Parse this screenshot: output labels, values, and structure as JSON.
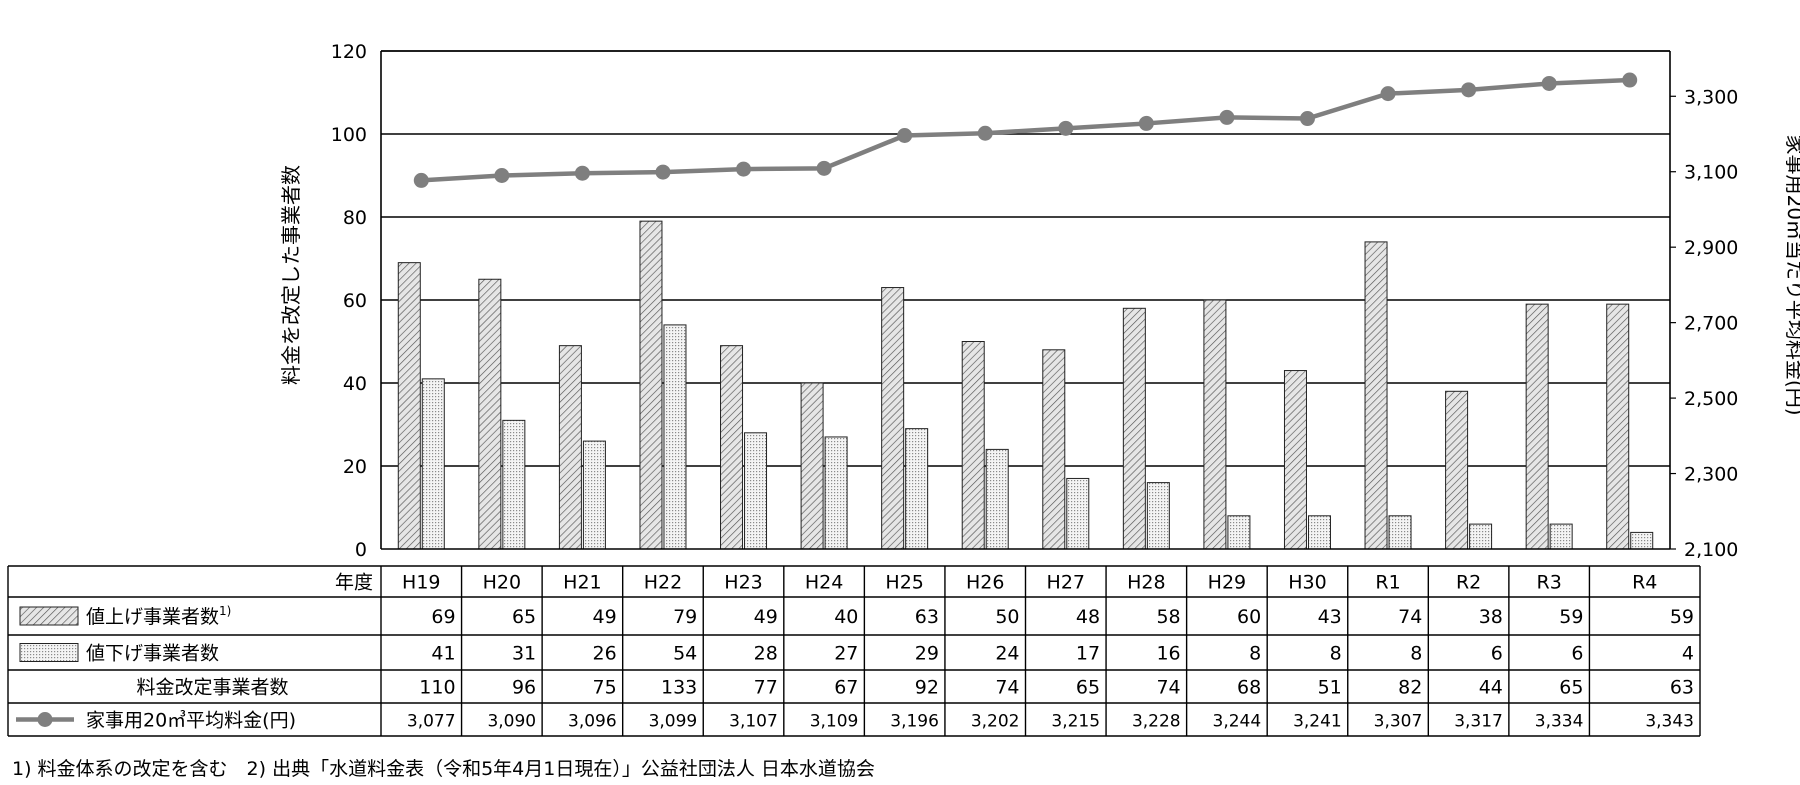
{
  "chart_data": {
    "type": "bar",
    "categories": [
      "H19",
      "H20",
      "H21",
      "H22",
      "H23",
      "H24",
      "H25",
      "H26",
      "H27",
      "H28",
      "H29",
      "H30",
      "R1",
      "R2",
      "R3",
      "R4"
    ],
    "series": [
      {
        "name": "値上げ事業者数",
        "values": [
          69,
          65,
          49,
          79,
          49,
          40,
          63,
          50,
          48,
          58,
          60,
          43,
          74,
          38,
          59,
          59
        ]
      },
      {
        "name": "値下げ事業者数",
        "values": [
          41,
          31,
          26,
          54,
          28,
          27,
          29,
          24,
          17,
          16,
          8,
          8,
          8,
          6,
          6,
          4
        ]
      },
      {
        "name": "家事用20㎥平均料金(円)",
        "type": "line",
        "axis": "right",
        "values": [
          3077,
          3090,
          3096,
          3099,
          3107,
          3109,
          3196,
          3202,
          3215,
          3228,
          3244,
          3241,
          3307,
          3317,
          3334,
          3343
        ]
      }
    ],
    "ylabel": "料金を改定した事業者数",
    "ylabel_right": "家事用20㎥当たり平均料金(円)",
    "ylim": [
      0,
      120
    ],
    "yticks": [
      "0",
      "20",
      "40",
      "60",
      "80",
      "100",
      "120"
    ],
    "ylim_right": [
      2100,
      3420
    ],
    "yticks_right": [
      "2,100",
      "2,300",
      "2,500",
      "2,700",
      "2,900",
      "3,100",
      "3,300"
    ],
    "grid": true
  },
  "table": {
    "header_label": "年度",
    "rows": [
      {
        "label": "値上げ事業者数",
        "sup": "1)",
        "values": [
          "69",
          "65",
          "49",
          "79",
          "49",
          "40",
          "63",
          "50",
          "48",
          "58",
          "60",
          "43",
          "74",
          "38",
          "59",
          "59"
        ]
      },
      {
        "label": "値下げ事業者数",
        "values": [
          "41",
          "31",
          "26",
          "54",
          "28",
          "27",
          "29",
          "24",
          "17",
          "16",
          "8",
          "8",
          "8",
          "6",
          "6",
          "4"
        ]
      },
      {
        "label": "料金改定事業者数",
        "values": [
          "110",
          "96",
          "75",
          "133",
          "77",
          "67",
          "92",
          "74",
          "65",
          "74",
          "68",
          "51",
          "82",
          "44",
          "65",
          "63"
        ]
      },
      {
        "label": "家事用20㎥平均料金(円)",
        "values": [
          "3,077",
          "3,090",
          "3,096",
          "3,099",
          "3,107",
          "3,109",
          "3,196",
          "3,202",
          "3,215",
          "3,228",
          "3,244",
          "3,241",
          "3,307",
          "3,317",
          "3,334",
          "3,343"
        ]
      }
    ]
  },
  "footnote": "1) 料金体系の改定を含む　2) 出典「水道料金表（令和5年4月1日現在）」公益社団法人 日本水道協会",
  "colors": {
    "bar_up": "#d9d9d9",
    "bar_down": "#efefef",
    "line": "#7f7f7f",
    "grid": "#000000"
  }
}
